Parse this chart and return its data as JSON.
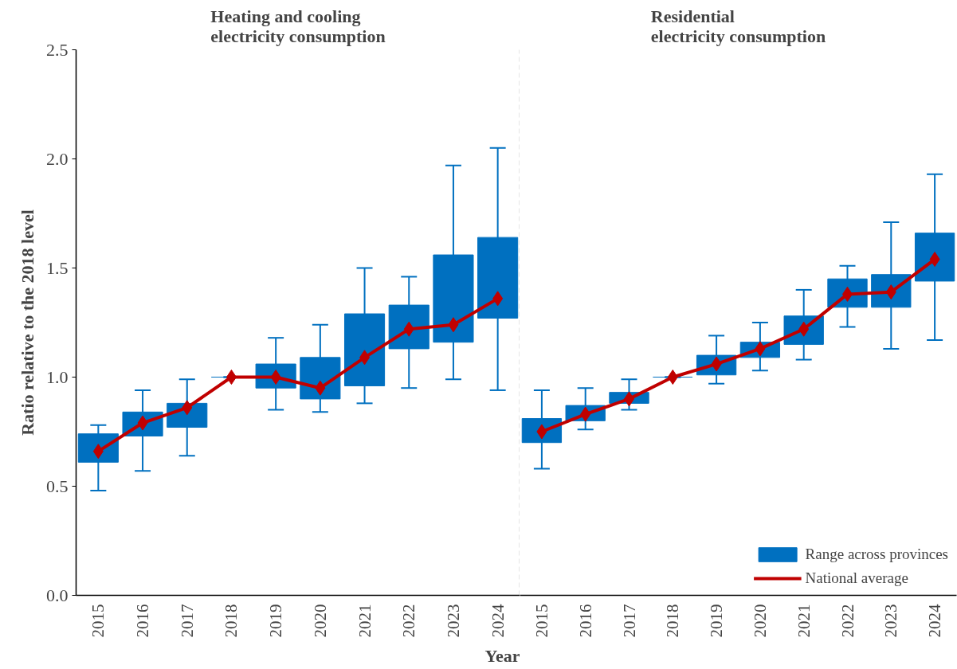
{
  "chart_data": [
    {
      "type": "bar",
      "title": "Heating and cooling\nelectricity consumption",
      "xlabel": "Year",
      "ylabel": "Ratio relative to the 2018 level",
      "categories": [
        "2015",
        "2016",
        "2017",
        "2018",
        "2019",
        "2020",
        "2021",
        "2022",
        "2023",
        "2024"
      ],
      "series": [
        {
          "color": "#0070c0",
          "base": [
            0.61,
            0.73,
            0.77,
            1.0,
            0.95,
            0.9,
            0.96,
            1.13,
            1.16,
            1.27
          ],
          "values": [
            0.13,
            0.11,
            0.11,
            0,
            0.11,
            0.19,
            0.33,
            0.2,
            0.4,
            0.37
          ],
          "errors": [
            [
              0.48,
              0.78
            ],
            [
              0.57,
              0.94
            ],
            [
              0.64,
              0.99
            ],
            [
              1.0,
              1.0
            ],
            [
              0.85,
              1.18
            ],
            [
              0.84,
              1.24
            ],
            [
              0.88,
              1.5
            ],
            [
              0.95,
              1.46
            ],
            [
              0.99,
              1.97
            ],
            [
              0.94,
              2.05
            ]
          ]
        },
        {
          "type": "line",
          "color": "#c00000",
          "marker": "diamond",
          "values": [
            0.66,
            0.79,
            0.86,
            1.0,
            1.0,
            0.95,
            1.09,
            1.22,
            1.24,
            1.36
          ]
        }
      ],
      "ylim": [
        0,
        2.5
      ],
      "yticks": [
        {
          "value": 0,
          "label": "0.0"
        },
        {
          "value": 0.5,
          "label": "0.5"
        },
        {
          "value": 1,
          "label": "1.0"
        },
        {
          "value": 1.5,
          "label": "1.5"
        },
        {
          "value": 2,
          "label": "2.0"
        },
        {
          "value": 2.5,
          "label": "2.5"
        }
      ],
      "grid": false,
      "legend": false
    },
    {
      "type": "bar",
      "title": "Residential\nelectricity consumption",
      "categories": [
        "2015",
        "2016",
        "2017",
        "2018",
        "2019",
        "2020",
        "2021",
        "2022",
        "2023",
        "2024"
      ],
      "series": [
        {
          "name": "Range across provinces",
          "color": "#0070c0",
          "base": [
            0.7,
            0.8,
            0.88,
            1.0,
            1.01,
            1.09,
            1.15,
            1.32,
            1.32,
            1.44
          ],
          "values": [
            0.11,
            0.07,
            0.05,
            0,
            0.09,
            0.07,
            0.13,
            0.13,
            0.15,
            0.22
          ],
          "errors": [
            [
              0.58,
              0.94
            ],
            [
              0.76,
              0.95
            ],
            [
              0.85,
              0.99
            ],
            [
              1.0,
              1.0
            ],
            [
              0.97,
              1.19
            ],
            [
              1.03,
              1.25
            ],
            [
              1.08,
              1.4
            ],
            [
              1.23,
              1.51
            ],
            [
              1.13,
              1.71
            ],
            [
              1.17,
              1.93
            ]
          ]
        },
        {
          "type": "line",
          "name": "National average",
          "color": "#c00000",
          "marker": "diamond",
          "values": [
            0.75,
            0.83,
            0.9,
            1.0,
            1.06,
            1.13,
            1.22,
            1.38,
            1.39,
            1.54
          ]
        }
      ],
      "ylim": [
        0,
        2.5
      ],
      "grid": false,
      "legend": "bottom right",
      "tick_labels": "x"
    }
  ]
}
